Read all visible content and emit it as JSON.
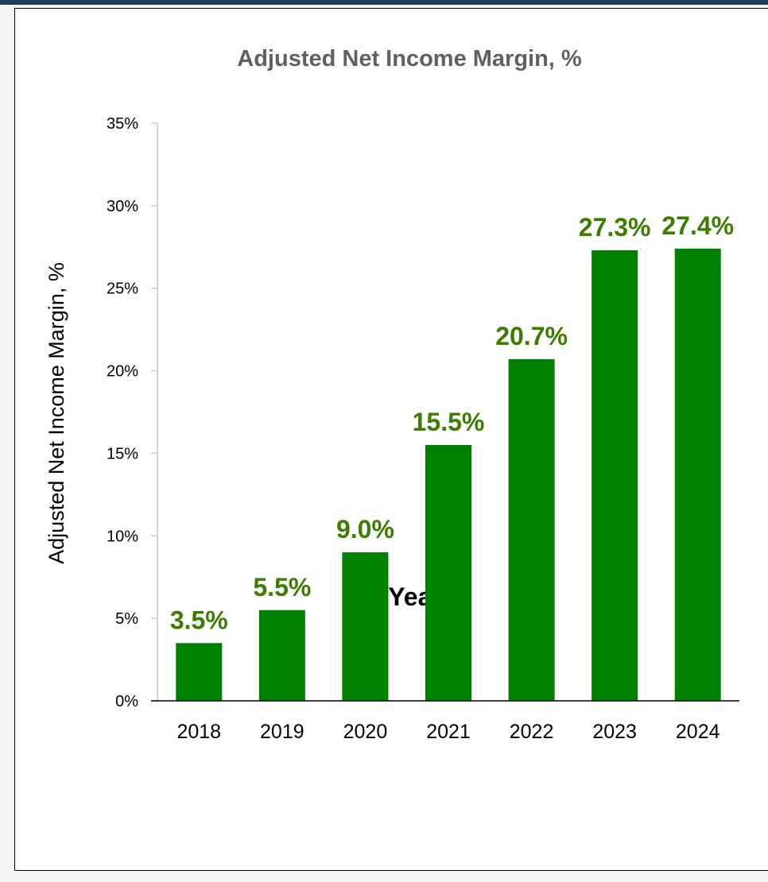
{
  "chart_data": {
    "type": "bar",
    "title": "Adjusted Net Income Margin, %",
    "xlabel": "Year",
    "ylabel": "Adjusted Net Income Margin, %",
    "categories": [
      "2018",
      "2019",
      "2020",
      "2021",
      "2022",
      "2023",
      "2024"
    ],
    "values": [
      3.5,
      5.5,
      9.0,
      15.5,
      20.7,
      27.3,
      27.4
    ],
    "data_labels": [
      "3.5%",
      "5.5%",
      "9.0%",
      "15.5%",
      "20.7%",
      "27.3%",
      "27.4%"
    ],
    "ylim": [
      0,
      35
    ],
    "yticks": [
      0,
      5,
      10,
      15,
      20,
      25,
      30,
      35
    ],
    "ytick_labels": [
      "0%",
      "5%",
      "10%",
      "15%",
      "20%",
      "25%",
      "30%",
      "35%"
    ],
    "grid": false,
    "legend": "none",
    "bar_color": "#008000",
    "label_color": "#3c7d00"
  }
}
